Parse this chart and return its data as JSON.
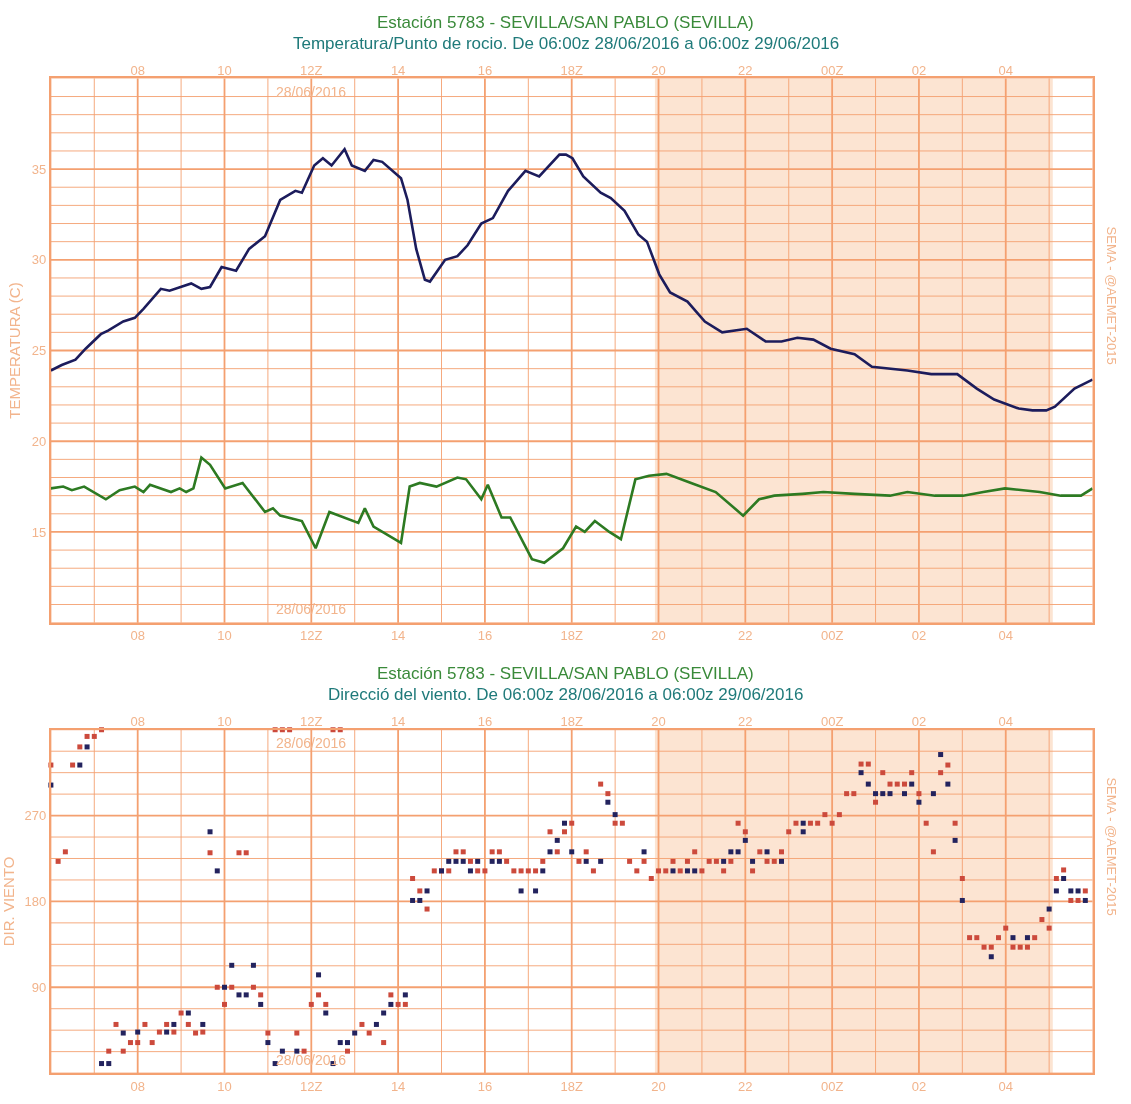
{
  "chart_data": [
    {
      "type": "line",
      "title": "Estación 5783 - SEVILLA/SAN PABLO (SEVILLA)",
      "subtitle": "Temperatura/Punto de rocio. De 06:00z 28/06/2016 a 06:00z 29/06/2016",
      "ylabel": "TEMPERATURA (C)",
      "line_style": "solid",
      "grid": true,
      "series": [
        {
          "color": "#1c1c5c",
          "x": [
            "2016-06-28T06:00",
            "2016-06-28T06:15",
            "2016-06-28T06:34",
            "2016-06-28T06:48",
            "2016-06-28T07:09",
            "2016-06-28T07:19",
            "2016-06-28T07:40",
            "2016-06-28T07:56",
            "2016-06-28T08:08",
            "2016-06-28T08:32",
            "2016-06-28T08:44",
            "2016-06-28T09:14",
            "2016-06-28T09:28",
            "2016-06-28T09:40",
            "2016-06-28T09:56",
            "2016-06-28T10:16",
            "2016-06-28T10:34",
            "2016-06-28T10:56",
            "2016-06-28T11:17",
            "2016-06-28T11:38",
            "2016-06-28T11:47",
            "2016-06-28T12:04",
            "2016-06-28T12:16",
            "2016-06-28T12:28",
            "2016-06-28T12:46",
            "2016-06-28T12:56",
            "2016-06-28T13:14",
            "2016-06-28T13:26",
            "2016-06-28T13:38",
            "2016-06-28T14:04",
            "2016-06-28T14:13",
            "2016-06-28T14:25",
            "2016-06-28T14:37",
            "2016-06-28T14:44",
            "2016-06-28T15:05",
            "2016-06-28T15:22",
            "2016-06-28T15:36",
            "2016-06-28T15:55",
            "2016-06-28T16:11",
            "2016-06-28T16:32",
            "2016-06-28T16:56",
            "2016-06-28T17:15",
            "2016-06-28T17:43",
            "2016-06-28T17:52",
            "2016-06-28T18:01",
            "2016-06-28T18:16",
            "2016-06-28T18:40",
            "2016-06-28T18:54",
            "2016-06-28T19:13",
            "2016-06-28T19:32",
            "2016-06-28T19:44",
            "2016-06-28T20:01",
            "2016-06-28T20:16",
            "2016-06-28T20:40",
            "2016-06-28T21:04",
            "2016-06-28T21:28",
            "2016-06-28T22:02",
            "2016-06-28T22:28",
            "2016-06-28T22:50",
            "2016-06-28T23:12",
            "2016-06-28T23:34",
            "2016-06-28T23:58",
            "2016-06-29T00:31",
            "2016-06-29T00:55",
            "2016-06-29T01:44",
            "2016-06-29T02:17",
            "2016-06-29T02:53",
            "2016-06-29T03:20",
            "2016-06-29T03:44",
            "2016-06-29T04:18",
            "2016-06-29T04:37",
            "2016-06-29T04:56",
            "2016-06-29T05:08",
            "2016-06-29T05:35",
            "2016-06-29T06:00"
          ],
          "values": [
            23.9,
            24.2,
            24.5,
            25.1,
            25.9,
            26.1,
            26.6,
            26.8,
            27.3,
            28.4,
            28.3,
            28.7,
            28.4,
            28.5,
            29.6,
            29.4,
            30.6,
            31.3,
            33.3,
            33.8,
            33.7,
            35.2,
            35.6,
            35.2,
            36.1,
            35.2,
            34.9,
            35.5,
            35.4,
            34.5,
            33.3,
            30.6,
            28.9,
            28.8,
            30.0,
            30.2,
            30.8,
            32.0,
            32.3,
            33.8,
            34.9,
            34.6,
            35.8,
            35.8,
            35.6,
            34.6,
            33.7,
            33.4,
            32.7,
            31.4,
            31.0,
            29.2,
            28.2,
            27.7,
            26.6,
            26.0,
            26.2,
            25.5,
            25.5,
            25.7,
            25.6,
            25.1,
            24.8,
            24.1,
            23.9,
            23.7,
            23.7,
            22.9,
            22.3,
            21.8,
            21.7,
            21.7,
            21.9,
            22.9,
            23.4
          ]
        },
        {
          "color": "#2d7a22",
          "x": [
            "2016-06-28T06:00",
            "2016-06-28T06:17",
            "2016-06-28T06:29",
            "2016-06-28T06:46",
            "2016-06-28T07:16",
            "2016-06-28T07:35",
            "2016-06-28T07:56",
            "2016-06-28T08:08",
            "2016-06-28T08:17",
            "2016-06-28T08:46",
            "2016-06-28T08:58",
            "2016-06-28T09:07",
            "2016-06-28T09:17",
            "2016-06-28T09:28",
            "2016-06-28T09:40",
            "2016-06-28T10:01",
            "2016-06-28T10:25",
            "2016-06-28T10:56",
            "2016-06-28T11:07",
            "2016-06-28T11:17",
            "2016-06-28T11:47",
            "2016-06-28T12:06",
            "2016-06-28T12:25",
            "2016-06-28T13:05",
            "2016-06-28T13:14",
            "2016-06-28T13:26",
            "2016-06-28T14:04",
            "2016-06-28T14:16",
            "2016-06-28T14:30",
            "2016-06-28T14:53",
            "2016-06-28T15:22",
            "2016-06-28T15:34",
            "2016-06-28T15:55",
            "2016-06-28T16:04",
            "2016-06-28T16:23",
            "2016-06-28T16:35",
            "2016-06-28T17:05",
            "2016-06-28T17:22",
            "2016-06-28T17:48",
            "2016-06-28T18:06",
            "2016-06-28T18:18",
            "2016-06-28T18:32",
            "2016-06-28T18:52",
            "2016-06-28T19:08",
            "2016-06-28T19:28",
            "2016-06-28T19:47",
            "2016-06-28T20:11",
            "2016-06-28T20:45",
            "2016-06-28T21:19",
            "2016-06-28T21:57",
            "2016-06-28T22:19",
            "2016-06-28T22:40",
            "2016-06-28T23:19",
            "2016-06-28T23:48",
            "2016-06-29T00:31",
            "2016-06-29T01:20",
            "2016-06-29T01:44",
            "2016-06-29T02:22",
            "2016-06-29T03:01",
            "2016-06-29T03:29",
            "2016-06-29T03:59",
            "2016-06-29T04:47",
            "2016-06-29T05:16",
            "2016-06-29T05:44",
            "2016-06-29T06:00"
          ],
          "values": [
            17.4,
            17.5,
            17.3,
            17.5,
            16.8,
            17.3,
            17.5,
            17.2,
            17.6,
            17.2,
            17.4,
            17.2,
            17.4,
            19.1,
            18.7,
            17.4,
            17.7,
            16.1,
            16.3,
            15.9,
            15.6,
            14.1,
            16.1,
            15.5,
            16.3,
            15.3,
            14.4,
            17.5,
            17.7,
            17.5,
            18.0,
            17.9,
            16.8,
            17.6,
            15.8,
            15.8,
            13.5,
            13.3,
            14.1,
            15.3,
            15.0,
            15.6,
            15.0,
            14.6,
            17.9,
            18.1,
            18.2,
            17.7,
            17.2,
            15.9,
            16.8,
            17.0,
            17.1,
            17.2,
            17.1,
            17.0,
            17.2,
            17.0,
            17.0,
            17.2,
            17.4,
            17.2,
            17.0,
            17.0,
            17.4
          ]
        }
      ],
      "xlim": [
        "2016-06-28T06:00",
        "2016-06-29T06:00"
      ],
      "x2lim": [
        "2016-06-28T06:00",
        "2016-06-29T06:00"
      ],
      "xticks": [
        {
          "value": "2016-06-28T06:00",
          "label": null
        },
        {
          "value": "2016-06-28T07:00",
          "label": null
        },
        {
          "value": "2016-06-28T08:00",
          "label": "08"
        },
        {
          "value": "2016-06-28T09:00",
          "label": null
        },
        {
          "value": "2016-06-28T10:00",
          "label": "10"
        },
        {
          "value": "2016-06-28T11:00",
          "label": null
        },
        {
          "value": "2016-06-28T12:00",
          "label": "12Z"
        },
        {
          "value": "2016-06-28T13:00",
          "label": null
        },
        {
          "value": "2016-06-28T14:00",
          "label": "14"
        },
        {
          "value": "2016-06-28T15:00",
          "label": null
        },
        {
          "value": "2016-06-28T16:00",
          "label": "16"
        },
        {
          "value": "2016-06-28T17:00",
          "label": null
        },
        {
          "value": "2016-06-28T18:00",
          "label": "18Z"
        },
        {
          "value": "2016-06-28T19:00",
          "label": null
        },
        {
          "value": "2016-06-28T20:00",
          "label": "20"
        },
        {
          "value": "2016-06-28T21:00",
          "label": null
        },
        {
          "value": "2016-06-28T22:00",
          "label": "22"
        },
        {
          "value": "2016-06-28T23:00",
          "label": null
        },
        {
          "value": "2016-06-29T00:00",
          "label": "00Z"
        },
        {
          "value": "2016-06-29T01:00",
          "label": null
        },
        {
          "value": "2016-06-29T02:00",
          "label": "02"
        },
        {
          "value": "2016-06-29T03:00",
          "label": null
        },
        {
          "value": "2016-06-29T04:00",
          "label": "04"
        },
        {
          "value": "2016-06-29T05:00",
          "label": null
        },
        {
          "value": "2016-06-29T06:00",
          "label": null
        }
      ],
      "x2ticks": [
        {
          "value": "2016-06-28T08:00",
          "label": "08"
        },
        {
          "value": "2016-06-28T10:00",
          "label": "10"
        },
        {
          "value": "2016-06-28T12:00",
          "label": "12Z"
        },
        {
          "value": "2016-06-28T14:00",
          "label": "14"
        },
        {
          "value": "2016-06-28T16:00",
          "label": "16"
        },
        {
          "value": "2016-06-28T18:00",
          "label": "18Z"
        },
        {
          "value": "2016-06-28T20:00",
          "label": "20"
        },
        {
          "value": "2016-06-28T22:00",
          "label": "22"
        },
        {
          "value": "2016-06-29T00:00",
          "label": "00Z"
        },
        {
          "value": "2016-06-29T02:00",
          "label": "02"
        },
        {
          "value": "2016-06-29T04:00",
          "label": "04"
        }
      ],
      "ylim": [
        10,
        40
      ],
      "yticks": [
        {
          "value": 10,
          "label": null
        },
        {
          "value": 11,
          "label": null
        },
        {
          "value": 12,
          "label": null
        },
        {
          "value": 13,
          "label": null
        },
        {
          "value": 14,
          "label": null
        },
        15,
        {
          "value": 16,
          "label": null
        },
        {
          "value": 17,
          "label": null
        },
        {
          "value": 18,
          "label": null
        },
        {
          "value": 19,
          "label": null
        },
        20,
        {
          "value": 21,
          "label": null
        },
        {
          "value": 22,
          "label": null
        },
        {
          "value": 23,
          "label": null
        },
        {
          "value": 24,
          "label": null
        },
        25,
        {
          "value": 26,
          "label": null
        },
        {
          "value": 27,
          "label": null
        },
        {
          "value": 28,
          "label": null
        },
        {
          "value": 29,
          "label": null
        },
        30,
        {
          "value": 31,
          "label": null
        },
        {
          "value": 32,
          "label": null
        },
        {
          "value": 33,
          "label": null
        },
        {
          "value": 34,
          "label": null
        },
        35,
        {
          "value": 36,
          "label": null
        },
        {
          "value": 37,
          "label": null
        },
        {
          "value": 38,
          "label": null
        },
        {
          "value": 39,
          "label": null
        },
        {
          "value": 40,
          "label": null
        }
      ],
      "bands": [
        {
          "axis": "x",
          "from": "2016-06-28T19:55",
          "to": "2016-06-29T05:05",
          "color": "#fce4d2"
        }
      ],
      "annotations": [
        "28/06/2016",
        "28/06/2016",
        "SEMA - @AEMET-2015"
      ]
    },
    {
      "type": "scatter",
      "title": "Estación 5783 - SEVILLA/SAN PABLO (SEVILLA)",
      "subtitle": "Direcció del viento. De 06:00z 28/06/2016 a 06:00z 29/06/2016",
      "ylabel": "DIR. VIENTO",
      "marker": "square",
      "grid": true,
      "series": [
        {
          "color": "#cc4a3c",
          "x": [
            "2016-06-28T06:00",
            "2016-06-28T06:10",
            "2016-06-28T06:20",
            "2016-06-28T06:30",
            "2016-06-28T06:40",
            "2016-06-28T06:50",
            "2016-06-28T07:00",
            "2016-06-28T07:10",
            "2016-06-28T07:20",
            "2016-06-28T07:30",
            "2016-06-28T07:40",
            "2016-06-28T07:50",
            "2016-06-28T08:00",
            "2016-06-28T08:10",
            "2016-06-28T08:20",
            "2016-06-28T08:30",
            "2016-06-28T08:40",
            "2016-06-28T08:50",
            "2016-06-28T09:00",
            "2016-06-28T09:10",
            "2016-06-28T09:20",
            "2016-06-28T09:30",
            "2016-06-28T09:40",
            "2016-06-28T09:50",
            "2016-06-28T10:00",
            "2016-06-28T10:10",
            "2016-06-28T10:20",
            "2016-06-28T10:30",
            "2016-06-28T10:40",
            "2016-06-28T10:50",
            "2016-06-28T11:00",
            "2016-06-28T11:10",
            "2016-06-28T11:20",
            "2016-06-28T11:30",
            "2016-06-28T11:40",
            "2016-06-28T11:50",
            "2016-06-28T12:00",
            "2016-06-28T12:10",
            "2016-06-28T12:20",
            "2016-06-28T12:30",
            "2016-06-28T12:40",
            "2016-06-28T12:50",
            "2016-06-28T13:10",
            "2016-06-28T13:20",
            "2016-06-28T13:40",
            "2016-06-28T13:50",
            "2016-06-28T14:00",
            "2016-06-28T14:10",
            "2016-06-28T14:20",
            "2016-06-28T14:30",
            "2016-06-28T14:40",
            "2016-06-28T14:50",
            "2016-06-28T15:00",
            "2016-06-28T15:10",
            "2016-06-28T15:20",
            "2016-06-28T15:30",
            "2016-06-28T15:40",
            "2016-06-28T15:50",
            "2016-06-28T16:00",
            "2016-06-28T16:10",
            "2016-06-28T16:20",
            "2016-06-28T16:30",
            "2016-06-28T16:40",
            "2016-06-28T16:50",
            "2016-06-28T17:00",
            "2016-06-28T17:10",
            "2016-06-28T17:20",
            "2016-06-28T17:30",
            "2016-06-28T17:40",
            "2016-06-28T17:50",
            "2016-06-28T18:00",
            "2016-06-28T18:10",
            "2016-06-28T18:20",
            "2016-06-28T18:30",
            "2016-06-28T18:40",
            "2016-06-28T18:50",
            "2016-06-28T19:00",
            "2016-06-28T19:10",
            "2016-06-28T19:20",
            "2016-06-28T19:30",
            "2016-06-28T19:40",
            "2016-06-28T19:50",
            "2016-06-28T20:00",
            "2016-06-28T20:10",
            "2016-06-28T20:20",
            "2016-06-28T20:30",
            "2016-06-28T20:40",
            "2016-06-28T20:50",
            "2016-06-28T21:00",
            "2016-06-28T21:10",
            "2016-06-28T21:20",
            "2016-06-28T21:30",
            "2016-06-28T21:40",
            "2016-06-28T21:50",
            "2016-06-28T22:00",
            "2016-06-28T22:10",
            "2016-06-28T22:20",
            "2016-06-28T22:30",
            "2016-06-28T22:40",
            "2016-06-28T22:50",
            "2016-06-28T23:00",
            "2016-06-28T23:10",
            "2016-06-28T23:30",
            "2016-06-28T23:40",
            "2016-06-28T23:50",
            "2016-06-29T00:00",
            "2016-06-29T00:10",
            "2016-06-29T00:20",
            "2016-06-29T00:30",
            "2016-06-29T00:40",
            "2016-06-29T00:50",
            "2016-06-29T01:00",
            "2016-06-29T01:10",
            "2016-06-29T01:20",
            "2016-06-29T01:30",
            "2016-06-29T01:40",
            "2016-06-29T01:50",
            "2016-06-29T02:00",
            "2016-06-29T02:10",
            "2016-06-29T02:20",
            "2016-06-29T02:30",
            "2016-06-29T02:40",
            "2016-06-29T02:50",
            "2016-06-29T03:00",
            "2016-06-29T03:10",
            "2016-06-29T03:20",
            "2016-06-29T03:30",
            "2016-06-29T03:40",
            "2016-06-29T03:50",
            "2016-06-29T04:00",
            "2016-06-29T04:10",
            "2016-06-29T04:20",
            "2016-06-29T04:30",
            "2016-06-29T04:40",
            "2016-06-29T04:50",
            "2016-06-29T05:00",
            "2016-06-29T05:10",
            "2016-06-29T05:20",
            "2016-06-29T05:30",
            "2016-06-29T05:40",
            "2016-06-29T05:50"
          ],
          "values": [
            323,
            222,
            232,
            323,
            342,
            353,
            353,
            360,
            23,
            51,
            23,
            32,
            32,
            51,
            32,
            43,
            51,
            43,
            63,
            51,
            42,
            43,
            231,
            90,
            72,
            90,
            231,
            231,
            90,
            82,
            42,
            360,
            360,
            360,
            42,
            23,
            72,
            82,
            72,
            360,
            360,
            23,
            51,
            42,
            32,
            82,
            72,
            72,
            204,
            191,
            172,
            212,
            212,
            212,
            232,
            232,
            222,
            212,
            212,
            232,
            232,
            222,
            212,
            212,
            212,
            212,
            222,
            253,
            232,
            253,
            262,
            222,
            232,
            212,
            303,
            293,
            262,
            262,
            222,
            212,
            222,
            204,
            212,
            212,
            222,
            212,
            222,
            232,
            212,
            222,
            222,
            212,
            222,
            262,
            253,
            212,
            232,
            222,
            222,
            232,
            253,
            262,
            262,
            262,
            271,
            262,
            271,
            293,
            293,
            324,
            324,
            284,
            315,
            303,
            303,
            303,
            315,
            293,
            262,
            232,
            315,
            323,
            262,
            204,
            142,
            142,
            132,
            132,
            142,
            152,
            132,
            132,
            132,
            142,
            161,
            152,
            204,
            213,
            181,
            181,
            191
          ]
        },
        {
          "color": "#23235e",
          "x": [
            "2016-06-28T06:00",
            "2016-06-28T06:40",
            "2016-06-28T06:50",
            "2016-06-28T07:10",
            "2016-06-28T07:20",
            "2016-06-28T07:40",
            "2016-06-28T08:00",
            "2016-06-28T08:40",
            "2016-06-28T08:50",
            "2016-06-28T09:10",
            "2016-06-28T09:30",
            "2016-06-28T09:40",
            "2016-06-28T09:50",
            "2016-06-28T10:00",
            "2016-06-28T10:10",
            "2016-06-28T10:20",
            "2016-06-28T10:30",
            "2016-06-28T10:40",
            "2016-06-28T10:50",
            "2016-06-28T11:00",
            "2016-06-28T11:10",
            "2016-06-28T11:20",
            "2016-06-28T11:40",
            "2016-06-28T12:10",
            "2016-06-28T12:20",
            "2016-06-28T12:30",
            "2016-06-28T12:40",
            "2016-06-28T12:50",
            "2016-06-28T13:00",
            "2016-06-28T13:30",
            "2016-06-28T13:40",
            "2016-06-28T13:50",
            "2016-06-28T14:10",
            "2016-06-28T14:20",
            "2016-06-28T14:30",
            "2016-06-28T14:40",
            "2016-06-28T15:00",
            "2016-06-28T15:10",
            "2016-06-28T15:20",
            "2016-06-28T15:30",
            "2016-06-28T15:40",
            "2016-06-28T15:50",
            "2016-06-28T16:10",
            "2016-06-28T16:20",
            "2016-06-28T16:50",
            "2016-06-28T17:10",
            "2016-06-28T17:20",
            "2016-06-28T17:30",
            "2016-06-28T17:40",
            "2016-06-28T17:50",
            "2016-06-28T18:00",
            "2016-06-28T18:20",
            "2016-06-28T18:40",
            "2016-06-28T18:50",
            "2016-06-28T19:00",
            "2016-06-28T19:40",
            "2016-06-28T20:20",
            "2016-06-28T20:40",
            "2016-06-28T20:50",
            "2016-06-28T21:30",
            "2016-06-28T21:40",
            "2016-06-28T21:50",
            "2016-06-28T22:00",
            "2016-06-28T22:10",
            "2016-06-28T22:30",
            "2016-06-28T22:50",
            "2016-06-28T23:20",
            "2016-06-28T23:20",
            "2016-06-29T00:40",
            "2016-06-29T00:50",
            "2016-06-29T01:00",
            "2016-06-29T01:10",
            "2016-06-29T01:20",
            "2016-06-29T01:40",
            "2016-06-29T01:50",
            "2016-06-29T02:00",
            "2016-06-29T02:20",
            "2016-06-29T02:30",
            "2016-06-29T02:40",
            "2016-06-29T02:50",
            "2016-06-29T03:00",
            "2016-06-29T03:40",
            "2016-06-29T04:10",
            "2016-06-29T04:30",
            "2016-06-29T05:00",
            "2016-06-29T05:10",
            "2016-06-29T05:20",
            "2016-06-29T05:30",
            "2016-06-29T05:40",
            "2016-06-29T05:50"
          ],
          "values": [
            302,
            323,
            342,
            10,
            10,
            42,
            43,
            43,
            51,
            63,
            51,
            253,
            212,
            90,
            113,
            82,
            82,
            113,
            72,
            32,
            10,
            23,
            23,
            103,
            63,
            10,
            32,
            32,
            42,
            51,
            63,
            72,
            82,
            181,
            181,
            191,
            212,
            222,
            222,
            222,
            212,
            222,
            222,
            222,
            191,
            191,
            212,
            232,
            244,
            262,
            232,
            222,
            222,
            284,
            271,
            232,
            212,
            212,
            212,
            222,
            232,
            232,
            244,
            222,
            232,
            222,
            262,
            253,
            315,
            303,
            293,
            293,
            293,
            293,
            303,
            284,
            293,
            334,
            303,
            244,
            181,
            122,
            142,
            142,
            172,
            191,
            204,
            191,
            191,
            181
          ]
        }
      ],
      "xlim": [
        "2016-06-28T06:00",
        "2016-06-29T06:00"
      ],
      "x2lim": [
        "2016-06-28T06:00",
        "2016-06-29T06:00"
      ],
      "xticks": [
        {
          "value": "2016-06-28T06:00",
          "label": null
        },
        {
          "value": "2016-06-28T07:00",
          "label": null
        },
        {
          "value": "2016-06-28T08:00",
          "label": "08"
        },
        {
          "value": "2016-06-28T09:00",
          "label": null
        },
        {
          "value": "2016-06-28T10:00",
          "label": "10"
        },
        {
          "value": "2016-06-28T11:00",
          "label": null
        },
        {
          "value": "2016-06-28T12:00",
          "label": "12Z"
        },
        {
          "value": "2016-06-28T13:00",
          "label": null
        },
        {
          "value": "2016-06-28T14:00",
          "label": "14"
        },
        {
          "value": "2016-06-28T15:00",
          "label": null
        },
        {
          "value": "2016-06-28T16:00",
          "label": "16"
        },
        {
          "value": "2016-06-28T17:00",
          "label": null
        },
        {
          "value": "2016-06-28T18:00",
          "label": "18Z"
        },
        {
          "value": "2016-06-28T19:00",
          "label": null
        },
        {
          "value": "2016-06-28T20:00",
          "label": "20"
        },
        {
          "value": "2016-06-28T21:00",
          "label": null
        },
        {
          "value": "2016-06-28T22:00",
          "label": "22"
        },
        {
          "value": "2016-06-28T23:00",
          "label": null
        },
        {
          "value": "2016-06-29T00:00",
          "label": "00Z"
        },
        {
          "value": "2016-06-29T01:00",
          "label": null
        },
        {
          "value": "2016-06-29T02:00",
          "label": "02"
        },
        {
          "value": "2016-06-29T03:00",
          "label": null
        },
        {
          "value": "2016-06-29T04:00",
          "label": "04"
        },
        {
          "value": "2016-06-29T05:00",
          "label": null
        },
        {
          "value": "2016-06-29T06:00",
          "label": null
        }
      ],
      "x2ticks": [
        {
          "value": "2016-06-28T08:00",
          "label": "08"
        },
        {
          "value": "2016-06-28T10:00",
          "label": "10"
        },
        {
          "value": "2016-06-28T12:00",
          "label": "12Z"
        },
        {
          "value": "2016-06-28T14:00",
          "label": "14"
        },
        {
          "value": "2016-06-28T16:00",
          "label": "16"
        },
        {
          "value": "2016-06-28T18:00",
          "label": "18Z"
        },
        {
          "value": "2016-06-28T20:00",
          "label": "20"
        },
        {
          "value": "2016-06-28T22:00",
          "label": "22"
        },
        {
          "value": "2016-06-29T00:00",
          "label": "00Z"
        },
        {
          "value": "2016-06-29T02:00",
          "label": "02"
        },
        {
          "value": "2016-06-29T04:00",
          "label": "04"
        }
      ],
      "ylim": [
        0,
        360
      ],
      "yticks": [
        {
          "value": 0,
          "label": null
        },
        {
          "value": 22.5,
          "label": null
        },
        {
          "value": 45,
          "label": null
        },
        {
          "value": 67.5,
          "label": null
        },
        90,
        {
          "value": 112.5,
          "label": null
        },
        {
          "value": 135,
          "label": null
        },
        {
          "value": 157.5,
          "label": null
        },
        180,
        {
          "value": 202.5,
          "label": null
        },
        {
          "value": 225,
          "label": null
        },
        {
          "value": 247.5,
          "label": null
        },
        270,
        {
          "value": 292.5,
          "label": null
        },
        {
          "value": 315,
          "label": null
        },
        {
          "value": 337.5,
          "label": null
        },
        {
          "value": 360,
          "label": null
        }
      ],
      "bands": [
        {
          "axis": "x",
          "from": "2016-06-28T19:55",
          "to": "2016-06-29T05:05",
          "color": "#fce4d2"
        }
      ],
      "annotations": [
        "28/06/2016",
        "28/06/2016",
        "SEMA - @AEMET-2015"
      ]
    }
  ]
}
